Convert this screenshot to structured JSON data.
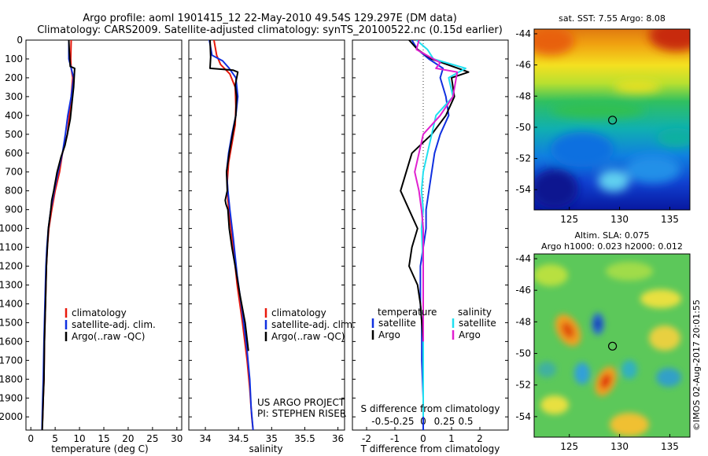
{
  "header": {
    "line1": "Argo profile: aoml 1901415_12 22-May-2010 49.54S 129.297E (DM data)",
    "line2": "Climatology: CARS2009. Satellite-adjusted climatology: synTS_20100522.nc (0.15d earlier)"
  },
  "colors": {
    "climatology": "#e8190c",
    "satellite": "#1030e0",
    "argo": "#000000",
    "argo_salinity_diff": "#e020d0",
    "satellite_salinity_diff": "#20e0f0"
  },
  "chart_data": [
    {
      "type": "line",
      "xlabel": "temperature (deg C)",
      "ylabel": "",
      "xlim": [
        -1,
        31
      ],
      "ylim": [
        0,
        2070
      ],
      "y_inverted": true,
      "xticks": [
        0,
        5,
        10,
        15,
        20,
        25,
        30
      ],
      "yticks": [
        0,
        100,
        200,
        300,
        400,
        500,
        600,
        700,
        800,
        900,
        1000,
        1100,
        1200,
        1300,
        1400,
        1500,
        1600,
        1700,
        1800,
        1900,
        2000
      ],
      "legend": {
        "position": "middle-right",
        "entries": [
          "climatology",
          "satellite-adj. clim.",
          "Argo(..raw -QC)"
        ]
      },
      "series": [
        {
          "name": "climatology",
          "x": [
            8.3,
            8.2,
            8.3,
            8.6,
            8.3,
            7.9,
            7.5,
            7.0,
            6.5,
            5.9,
            5.0,
            4.3,
            3.7,
            3.4,
            3.2,
            3.0,
            2.8,
            2.7,
            2.55,
            2.45,
            2.35,
            2.3
          ],
          "y": [
            0,
            100,
            150,
            200,
            300,
            400,
            500,
            550,
            600,
            700,
            800,
            900,
            1000,
            1100,
            1200,
            1400,
            1600,
            1800,
            1900,
            2000,
            2050,
            2070
          ]
        },
        {
          "name": "satellite-adj. clim.",
          "x": [
            7.8,
            7.8,
            8.3,
            8.8,
            8.3,
            7.6,
            7.1,
            6.5,
            5.6,
            4.8,
            4.1,
            3.6,
            3.3,
            3.1,
            2.9,
            2.7,
            2.55,
            2.45,
            2.35,
            2.3
          ],
          "y": [
            0,
            100,
            150,
            200,
            300,
            400,
            500,
            600,
            700,
            800,
            900,
            1000,
            1100,
            1200,
            1400,
            1600,
            1800,
            1900,
            2000,
            2070
          ]
        },
        {
          "name": "Argo(..raw -QC)",
          "x": [
            7.8,
            7.9,
            8.0,
            8.1,
            9.0,
            8.8,
            8.5,
            8.1,
            7.5,
            7.0,
            6.2,
            5.4,
            4.7,
            4.3,
            4.1,
            3.6,
            3.4,
            3.2,
            3.0,
            2.8,
            2.7,
            2.55,
            2.45,
            2.35
          ],
          "y": [
            0,
            60,
            100,
            140,
            150,
            250,
            320,
            420,
            500,
            560,
            620,
            700,
            800,
            850,
            900,
            1000,
            1100,
            1200,
            1400,
            1600,
            1800,
            1900,
            2000,
            2070
          ]
        }
      ]
    },
    {
      "type": "line",
      "xlabel": "salinity",
      "xlim": [
        33.75,
        36.1
      ],
      "ylim": [
        0,
        2070
      ],
      "y_inverted": true,
      "xticks": [
        34,
        34.5,
        35,
        35.5,
        36
      ],
      "legend": {
        "position": "middle-right",
        "entries": [
          "climatology",
          "satellite-adj. clim.",
          "Argo(..raw -QC)"
        ]
      },
      "annotations": [
        "US ARGO PROJECT",
        "PI: STEPHEN RISER"
      ],
      "series": [
        {
          "name": "climatology",
          "x": [
            34.13,
            34.17,
            34.23,
            34.37,
            34.45,
            34.46,
            34.45,
            34.4,
            34.35,
            34.33,
            34.34,
            34.37,
            34.42,
            34.48,
            34.56,
            34.63,
            34.67,
            34.7,
            34.72
          ],
          "y": [
            0,
            80,
            130,
            180,
            250,
            350,
            450,
            550,
            650,
            750,
            850,
            950,
            1100,
            1300,
            1500,
            1700,
            1850,
            2000,
            2070
          ]
        },
        {
          "name": "satellite-adj. clim.",
          "x": [
            34.06,
            34.1,
            34.26,
            34.36,
            34.46,
            34.49,
            34.46,
            34.4,
            34.35,
            34.32,
            34.34,
            34.37,
            34.42,
            34.48,
            34.56,
            34.63,
            34.67,
            34.69,
            34.72
          ],
          "y": [
            0,
            80,
            110,
            150,
            200,
            300,
            400,
            500,
            600,
            700,
            800,
            900,
            1050,
            1250,
            1450,
            1650,
            1800,
            1950,
            2070
          ]
        },
        {
          "name": "Argo(..raw -QC)",
          "x": [
            34.07,
            34.08,
            34.07,
            34.42,
            34.49,
            34.45,
            34.47,
            34.46,
            34.41,
            34.36,
            34.32,
            34.33,
            34.3,
            34.31,
            34.34,
            34.36,
            34.4,
            34.45,
            34.52,
            34.6,
            34.65
          ],
          "y": [
            0,
            90,
            150,
            160,
            170,
            240,
            300,
            400,
            500,
            600,
            700,
            800,
            850,
            870,
            900,
            1000,
            1100,
            1200,
            1350,
            1500,
            1650
          ]
        }
      ]
    },
    {
      "type": "line",
      "xlabel": "T difference from climatology",
      "x2label": "S difference from climatology",
      "xlim": [
        -2.5,
        3
      ],
      "ylim": [
        0,
        2070
      ],
      "y_inverted": true,
      "xticks": [
        -2,
        -1,
        0,
        1,
        2
      ],
      "x2ticks": [
        -0.5,
        -0.25,
        0,
        0.25,
        0.5
      ],
      "legend": {
        "position": "lower-middle",
        "groups": [
          {
            "title": "temperature",
            "entries": [
              "satellite",
              "Argo"
            ]
          },
          {
            "title": "salinity",
            "entries": [
              "satellite",
              "Argo"
            ]
          }
        ]
      },
      "series": [
        {
          "name": "satellite",
          "group": "temperature",
          "x": [
            -0.4,
            -0.2,
            0.2,
            0.7,
            0.6,
            0.8,
            0.9,
            0.6,
            0.4,
            0.3,
            0.2,
            0.1,
            0.1,
            0.0,
            -0.1,
            -0.1,
            -0.1,
            -0.05,
            -0.05,
            0.0,
            0.0
          ],
          "y": [
            0,
            50,
            100,
            150,
            200,
            300,
            400,
            500,
            600,
            700,
            800,
            900,
            1000,
            1100,
            1200,
            1300,
            1400,
            1500,
            1700,
            1900,
            2070
          ]
        },
        {
          "name": "Argo",
          "group": "temperature",
          "x": [
            -0.5,
            -0.2,
            0.3,
            1.6,
            1.0,
            1.1,
            0.8,
            0.3,
            -0.4,
            -0.6,
            -0.8,
            -0.5,
            -0.2,
            -0.4,
            -0.5,
            -0.2,
            -0.1,
            -0.05,
            0.0,
            0.0
          ],
          "y": [
            0,
            50,
            100,
            170,
            200,
            300,
            400,
            500,
            600,
            700,
            800,
            900,
            1000,
            1100,
            1200,
            1300,
            1400,
            1500,
            1600,
            1700
          ]
        },
        {
          "name": "satellite",
          "group": "salinity",
          "x": [
            -0.08,
            0.05,
            0.12,
            0.5,
            0.3,
            0.35,
            0.15,
            0.1,
            0.05,
            0.0,
            -0.02,
            0.0,
            -0.02,
            0.0,
            0.0,
            0.0,
            0.0,
            0.0
          ],
          "y": [
            0,
            50,
            100,
            150,
            200,
            300,
            400,
            500,
            600,
            700,
            800,
            900,
            1000,
            1200,
            1400,
            1600,
            1800,
            2000
          ]
        },
        {
          "name": "Argo",
          "group": "salinity",
          "x": [
            -0.05,
            -0.08,
            0.2,
            0.15,
            0.4,
            0.35,
            0.2,
            0.0,
            -0.05,
            -0.1,
            -0.05,
            -0.02,
            0.0,
            0.0,
            0.0,
            0.0
          ],
          "y": [
            0,
            50,
            120,
            150,
            170,
            300,
            400,
            500,
            600,
            700,
            800,
            900,
            1000,
            1200,
            1400,
            1600
          ]
        }
      ]
    },
    {
      "type": "heatmap",
      "title": "sat. SST: 7.55 Argo: 8.08",
      "xlim": [
        121.5,
        137
      ],
      "ylim": [
        -55.3,
        -43.7
      ],
      "xticks": [
        125,
        130,
        135
      ],
      "yticks": [
        -44,
        -46,
        -48,
        -50,
        -52,
        -54
      ],
      "marker": {
        "x": 129.297,
        "y": -49.54
      }
    },
    {
      "type": "heatmap",
      "title": "Altim. SLA: 0.075",
      "subtitle": "Argo h1000: 0.023 h2000: 0.012",
      "xlim": [
        121.5,
        137
      ],
      "ylim": [
        -55.3,
        -43.7
      ],
      "xticks": [
        125,
        130,
        135
      ],
      "yticks": [
        -44,
        -46,
        -48,
        -50,
        -52,
        -54
      ],
      "marker": {
        "x": 129.297,
        "y": -49.54
      },
      "annotation": "©IMOS 02-Aug-2017 20:01:55"
    }
  ]
}
